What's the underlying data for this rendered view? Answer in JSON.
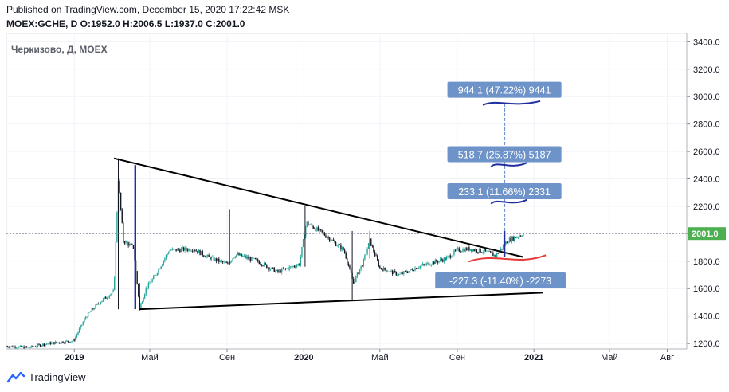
{
  "header": {
    "published": "Published on TradingView.com, December 15, 2020 17:22:42 MSK",
    "ohlc": "MOEX:GCHE, D O:1952.0 H:2006.5 L:1937.0 C:2001.0"
  },
  "footer": {
    "brand": "TradingView"
  },
  "colors": {
    "up": "#26a69a",
    "down": "#131722",
    "label_bg": "#6d93c8",
    "marker": "#1f2fa0",
    "price_tag": "#4caf50",
    "red_line": "#e53935"
  },
  "chart_data": {
    "type": "candlestick",
    "title": "Черкизово, Д, MOEX",
    "x_tick_labels": [
      "2019",
      "Май",
      "Сен",
      "2020",
      "Май",
      "Сен",
      "2021",
      "Май",
      "Авг"
    ],
    "x_tick_dates": [
      "2019-01-01",
      "2019-05-01",
      "2019-09-01",
      "2020-01-01",
      "2020-05-01",
      "2020-09-01",
      "2021-01-01",
      "2021-05-01",
      "2021-08-01"
    ],
    "y_ticks": [
      1200,
      1400,
      1600,
      1800,
      2000,
      2200,
      2400,
      2600,
      2800,
      3000,
      3200,
      3400
    ],
    "ylim": [
      1160,
      3460
    ],
    "xlim": [
      "2018-09-15",
      "2021-09-01"
    ],
    "last_price": "2001.0",
    "price_path": [
      [
        "2018-09-15",
        1180
      ],
      [
        "2018-10-20",
        1170
      ],
      [
        "2018-11-20",
        1200
      ],
      [
        "2018-12-31",
        1220
      ],
      [
        "2019-01-20",
        1400
      ],
      [
        "2019-02-10",
        1500
      ],
      [
        "2019-03-05",
        1580
      ],
      [
        "2019-03-12",
        2400
      ],
      [
        "2019-03-20",
        1950
      ],
      [
        "2019-04-05",
        1900
      ],
      [
        "2019-04-15",
        1460
      ],
      [
        "2019-04-25",
        1600
      ],
      [
        "2019-05-10",
        1700
      ],
      [
        "2019-06-01",
        1880
      ],
      [
        "2019-07-10",
        1890
      ],
      [
        "2019-08-01",
        1830
      ],
      [
        "2019-09-01",
        1780
      ],
      [
        "2019-09-15",
        1850
      ],
      [
        "2019-10-20",
        1800
      ],
      [
        "2019-11-20",
        1720
      ],
      [
        "2019-12-25",
        1780
      ],
      [
        "2020-01-05",
        2080
      ],
      [
        "2020-02-01",
        2000
      ],
      [
        "2020-03-05",
        1880
      ],
      [
        "2020-03-20",
        1640
      ],
      [
        "2020-04-05",
        1800
      ],
      [
        "2020-04-15",
        1950
      ],
      [
        "2020-05-01",
        1750
      ],
      [
        "2020-06-01",
        1700
      ],
      [
        "2020-07-01",
        1760
      ],
      [
        "2020-08-15",
        1820
      ],
      [
        "2020-09-01",
        1880
      ],
      [
        "2020-09-20",
        1890
      ],
      [
        "2020-10-15",
        1870
      ],
      [
        "2020-11-01",
        1840
      ],
      [
        "2020-11-20",
        1950
      ],
      [
        "2020-12-15",
        2001
      ]
    ],
    "spikes": [
      {
        "date": "2019-03-12",
        "high": 2550,
        "low": 1450
      },
      {
        "date": "2019-04-15",
        "high": 1640,
        "low": 1440
      },
      {
        "date": "2019-09-05",
        "high": 2180,
        "low": 1770
      },
      {
        "date": "2020-01-03",
        "high": 2200,
        "low": 1760
      },
      {
        "date": "2020-03-18",
        "high": 2020,
        "low": 1510
      },
      {
        "date": "2020-04-15",
        "high": 2020,
        "low": 1820
      }
    ],
    "trend_lines": [
      {
        "name": "upper",
        "from": [
          "2019-03-05",
          2550
        ],
        "to": [
          "2020-12-15",
          1830
        ]
      },
      {
        "name": "lower",
        "from": [
          "2019-04-15",
          1450
        ],
        "to": [
          "2021-01-15",
          1570
        ]
      }
    ],
    "measure_lines": [
      {
        "date": "2019-04-08",
        "from": 1450,
        "to": 2500
      },
      {
        "date": "2020-11-15",
        "from": 1830,
        "to": 2020
      }
    ],
    "annotations": [
      {
        "text": "944.1 (47.22%) 9441",
        "anchor": [
          "2020-11-15",
          3050
        ]
      },
      {
        "text": "518.7 (25.87%) 5187",
        "anchor": [
          "2020-11-15",
          2580
        ]
      },
      {
        "text": "233.1 (11.66%) 2331",
        "anchor": [
          "2020-11-15",
          2310
        ]
      },
      {
        "text": "-227.3 (-11.40%) -2273",
        "anchor": [
          "2020-11-15",
          1660
        ]
      }
    ]
  }
}
